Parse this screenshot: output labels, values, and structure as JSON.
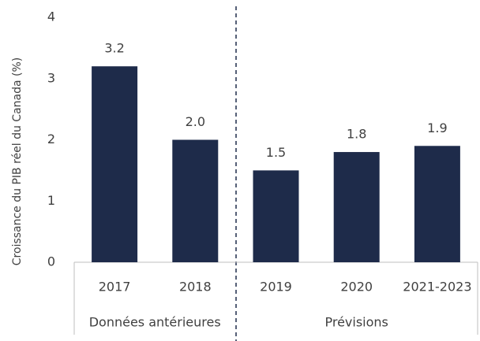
{
  "chart_data": {
    "type": "bar",
    "y_axis_label": "Croissance du PIB réel du Canada (%)",
    "categories": [
      "2017",
      "2018",
      "2019",
      "2020",
      "2021-2023"
    ],
    "values": [
      3.2,
      2.0,
      1.5,
      1.8,
      1.9
    ],
    "value_labels": [
      "3.2",
      "2.0",
      "1.5",
      "1.8",
      "1.9"
    ],
    "groups": [
      "Données antérieures",
      "Prévisions"
    ],
    "color": "#1e2b4a",
    "ylim": [
      0,
      4
    ],
    "yticks": [
      0,
      1,
      2,
      3,
      4
    ],
    "grid": false
  }
}
